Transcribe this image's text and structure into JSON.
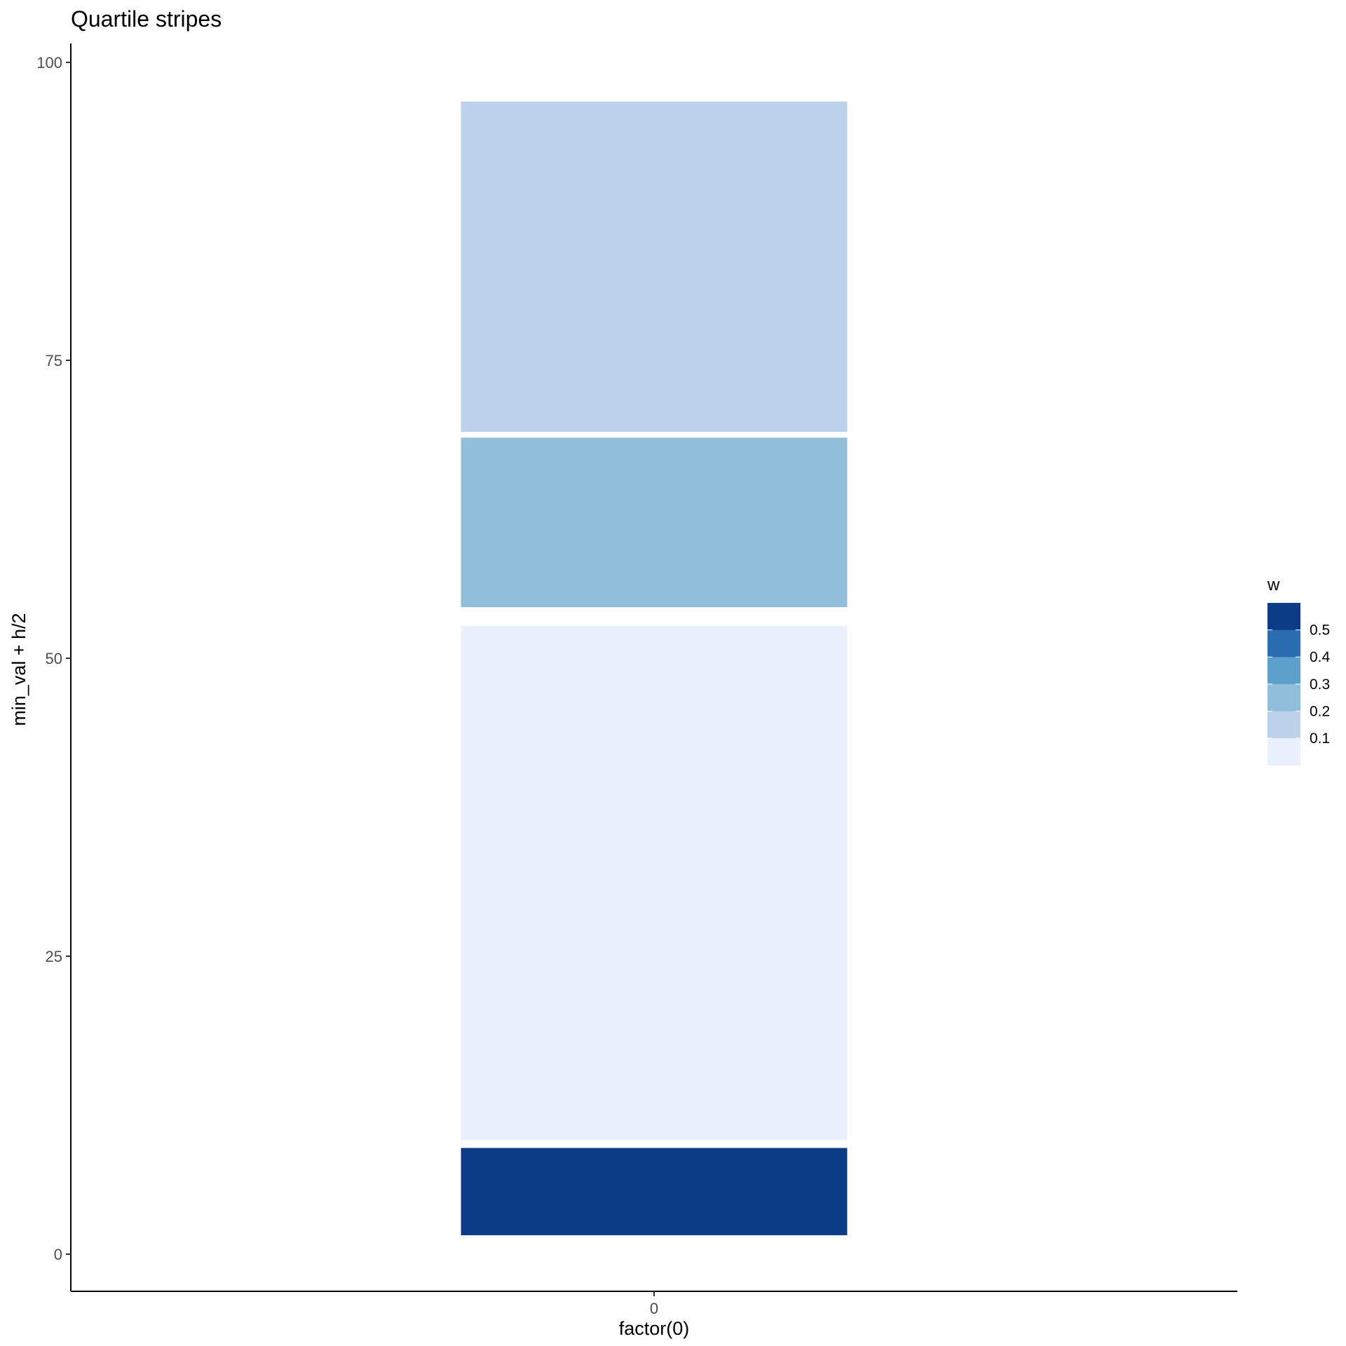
{
  "chart_data": {
    "type": "bar",
    "title": "Quartile stripes",
    "xlabel": "factor(0)",
    "ylabel": "min_val + h/2",
    "categories": [
      "0"
    ],
    "y_ticks": [
      0,
      25,
      50,
      75,
      100
    ],
    "x_ticks": [
      "0"
    ],
    "grid": false,
    "stripes": [
      {
        "category": "0",
        "y_min": 1.5,
        "y_max": 9.0,
        "w": 0.55,
        "color": "#0c3c88"
      },
      {
        "category": "0",
        "y_min": 9.5,
        "y_max": 52.8,
        "w": 0.05,
        "color": "#eaf0fd"
      },
      {
        "category": "0",
        "y_min": 54.2,
        "y_max": 68.6,
        "w": 0.2,
        "color": "#91bedb"
      },
      {
        "category": "0",
        "y_min": 68.9,
        "y_max": 96.8,
        "w": 0.15,
        "color": "#bdd2eb"
      }
    ],
    "legend": {
      "title": "w",
      "position": "right",
      "labels": [
        "0.5",
        "0.4",
        "0.3",
        "0.2",
        "0.1"
      ],
      "colors": [
        "#0c3c88",
        "#2a6db1",
        "#5ea0cc",
        "#91bedb",
        "#bdd2eb",
        "#eaf0fd"
      ]
    }
  }
}
